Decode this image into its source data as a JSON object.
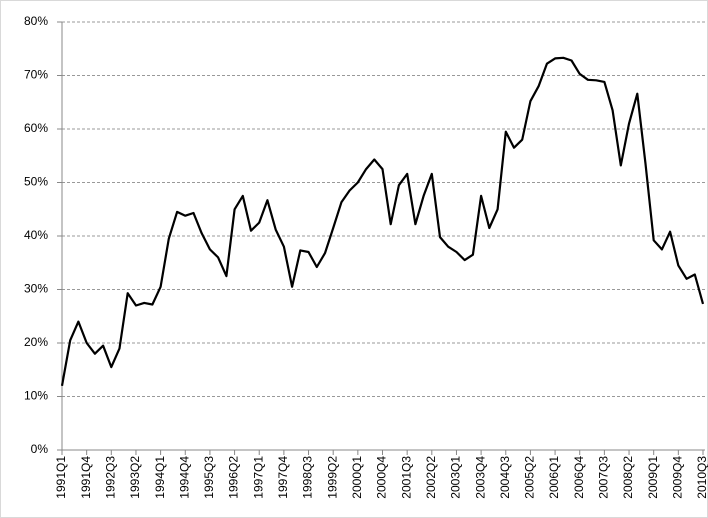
{
  "chart_data": {
    "type": "line",
    "categories": [
      "1991Q1",
      null,
      null,
      "1991Q4",
      null,
      null,
      "1992Q3",
      null,
      null,
      "1993Q2",
      null,
      null,
      "1994Q1",
      null,
      null,
      "1994Q4",
      null,
      null,
      "1995Q3",
      null,
      null,
      "1996Q2",
      null,
      null,
      "1997Q1",
      null,
      null,
      "1997Q4",
      null,
      null,
      "1998Q3",
      null,
      null,
      "1999Q2",
      null,
      null,
      "2000Q1",
      null,
      null,
      "2000Q4",
      null,
      null,
      "2001Q3",
      null,
      null,
      "2002Q2",
      null,
      null,
      "2003Q1",
      null,
      null,
      "2003Q4",
      null,
      null,
      "2004Q3",
      null,
      null,
      "2005Q2",
      null,
      null,
      "2006Q1",
      null,
      null,
      "2006Q4",
      null,
      null,
      "2007Q3",
      null,
      null,
      "2008Q2",
      null,
      null,
      "2009Q1",
      null,
      null,
      "2009Q4",
      null,
      null,
      "2010Q3"
    ],
    "values": [
      12,
      20.5,
      24,
      20,
      18,
      19.5,
      15.5,
      19,
      29.3,
      27,
      27.5,
      27.2,
      30.5,
      39.5,
      44.5,
      43.8,
      44.3,
      40.5,
      37.5,
      36,
      32.5,
      45,
      47.5,
      41,
      42.5,
      46.7,
      41.2,
      38,
      30.5,
      37.3,
      37,
      34.2,
      36.8,
      41.5,
      46.3,
      48.5,
      50,
      52.5,
      54.3,
      52.5,
      42.2,
      49.5,
      51.6,
      42.2,
      47.5,
      51.6,
      39.8,
      38,
      37,
      35.5,
      36.5,
      47.5,
      41.5,
      45,
      59.5,
      56.5,
      58,
      65.2,
      68,
      72.2,
      73.2,
      73.3,
      72.8,
      70.3,
      69.2,
      69.1,
      68.8,
      63.5,
      53.2,
      61,
      66.6,
      53.5,
      39.2,
      37.5,
      40.8,
      34.5,
      32,
      32.8,
      27.3
    ],
    "color": "#000000",
    "ylim": [
      0,
      80
    ],
    "yticks": [
      {
        "value": 0,
        "label": "0%"
      },
      {
        "value": 10,
        "label": "10%"
      },
      {
        "value": 20,
        "label": "20%"
      },
      {
        "value": 30,
        "label": "30%"
      },
      {
        "value": 40,
        "label": "40%"
      },
      {
        "value": 50,
        "label": "50%"
      },
      {
        "value": 60,
        "label": "60%"
      },
      {
        "value": 70,
        "label": "70%"
      },
      {
        "value": 80,
        "label": "80%"
      }
    ],
    "grid": true
  }
}
